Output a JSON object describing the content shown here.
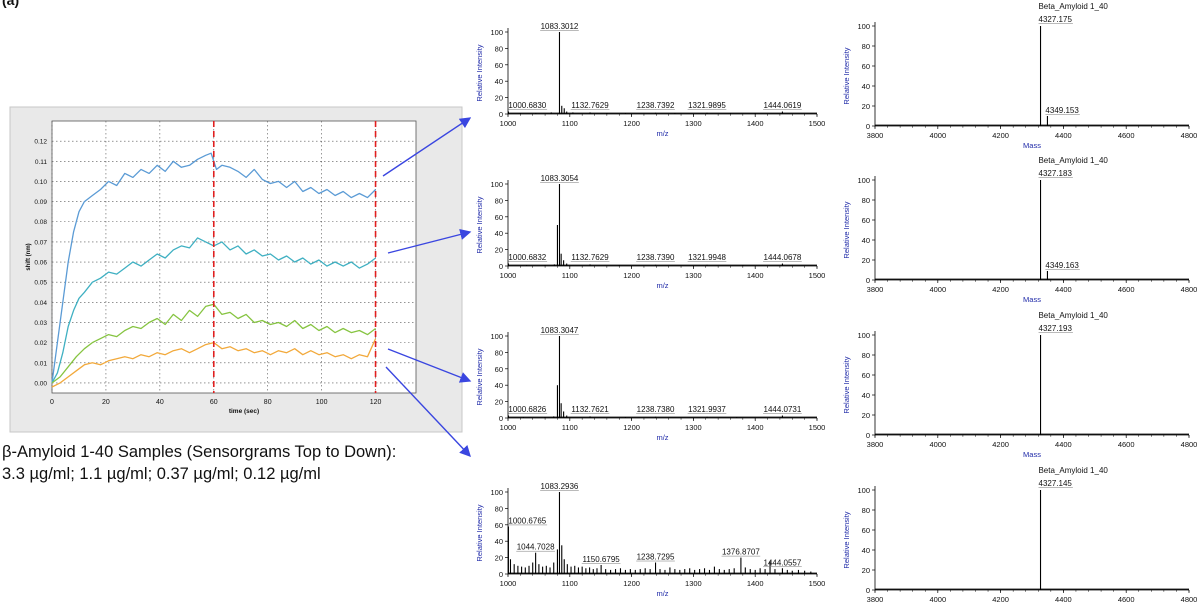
{
  "figure": {
    "panel_label": "(a)",
    "caption_line1": "β-Amyloid 1-40 Samples (Sensorgrams Top to Down):",
    "caption_line2": "3.3 µg/ml; 1.1 µg/ml; 0.37 µg/ml; 0.12 µg/ml"
  },
  "colors": {
    "trace_1": "#5b9bd5",
    "trace_2": "#3fb0c2",
    "trace_3": "#86c441",
    "trace_4": "#f2a93b",
    "dashed_marker": "#e01f1f",
    "arrow": "#3a46e0",
    "ms_axis_label": "#1f2aa8"
  },
  "chart_data": [
    {
      "type": "line",
      "id": "sensorgram",
      "xlabel": "time (sec)",
      "ylabel": "shift (nm)",
      "xlim": [
        0,
        135
      ],
      "ylim": [
        -0.005,
        0.13
      ],
      "xticks": [
        0,
        20,
        40,
        60,
        80,
        100,
        120
      ],
      "yticks": [
        0.0,
        0.01,
        0.02,
        0.03,
        0.04,
        0.05,
        0.06,
        0.07,
        0.08,
        0.09,
        0.1,
        0.11,
        0.12
      ],
      "ytick_labels": [
        "0.00",
        "0.01",
        "0.02",
        "0.03",
        "0.04",
        "0.05",
        "0.06",
        "0.07",
        "0.08",
        "0.09",
        "0.10",
        "0.11",
        "0.12"
      ],
      "grid": true,
      "vlines": [
        60,
        120
      ],
      "series": [
        {
          "color": "#5b9bd5",
          "x": [
            0,
            2,
            4,
            6,
            8,
            10,
            12,
            15,
            18,
            21,
            24,
            27,
            30,
            33,
            36,
            39,
            42,
            45,
            48,
            51,
            54,
            57,
            59,
            61,
            63,
            66,
            69,
            72,
            75,
            78,
            81,
            84,
            87,
            90,
            93,
            96,
            99,
            102,
            105,
            108,
            111,
            114,
            117,
            120
          ],
          "y": [
            0.0,
            0.02,
            0.04,
            0.06,
            0.075,
            0.085,
            0.09,
            0.093,
            0.096,
            0.1,
            0.098,
            0.104,
            0.102,
            0.106,
            0.104,
            0.108,
            0.105,
            0.11,
            0.107,
            0.108,
            0.111,
            0.113,
            0.114,
            0.106,
            0.108,
            0.107,
            0.105,
            0.102,
            0.106,
            0.101,
            0.099,
            0.1,
            0.097,
            0.1,
            0.095,
            0.097,
            0.094,
            0.096,
            0.093,
            0.095,
            0.092,
            0.094,
            0.092,
            0.096
          ]
        },
        {
          "color": "#3fb0c2",
          "x": [
            0,
            2,
            4,
            6,
            8,
            10,
            12,
            15,
            18,
            21,
            24,
            27,
            30,
            33,
            36,
            39,
            42,
            45,
            48,
            51,
            54,
            57,
            60,
            63,
            66,
            69,
            72,
            75,
            78,
            81,
            84,
            87,
            90,
            93,
            96,
            99,
            102,
            105,
            108,
            111,
            114,
            117,
            120
          ],
          "y": [
            0.0,
            0.005,
            0.015,
            0.028,
            0.036,
            0.042,
            0.045,
            0.05,
            0.052,
            0.055,
            0.054,
            0.057,
            0.06,
            0.058,
            0.061,
            0.064,
            0.062,
            0.066,
            0.068,
            0.067,
            0.072,
            0.07,
            0.068,
            0.07,
            0.066,
            0.068,
            0.064,
            0.066,
            0.063,
            0.064,
            0.061,
            0.063,
            0.06,
            0.062,
            0.059,
            0.061,
            0.058,
            0.06,
            0.058,
            0.06,
            0.057,
            0.059,
            0.062
          ]
        },
        {
          "color": "#86c441",
          "x": [
            0,
            3,
            6,
            9,
            12,
            15,
            18,
            21,
            24,
            27,
            30,
            33,
            36,
            39,
            42,
            45,
            48,
            51,
            54,
            57,
            60,
            63,
            66,
            69,
            72,
            75,
            78,
            81,
            84,
            87,
            90,
            93,
            96,
            99,
            102,
            105,
            108,
            111,
            114,
            117,
            120
          ],
          "y": [
            0.0,
            0.003,
            0.008,
            0.013,
            0.017,
            0.02,
            0.022,
            0.024,
            0.023,
            0.026,
            0.028,
            0.027,
            0.03,
            0.032,
            0.029,
            0.034,
            0.031,
            0.036,
            0.033,
            0.038,
            0.039,
            0.034,
            0.035,
            0.032,
            0.034,
            0.03,
            0.031,
            0.029,
            0.03,
            0.028,
            0.031,
            0.027,
            0.029,
            0.026,
            0.028,
            0.025,
            0.027,
            0.025,
            0.026,
            0.024,
            0.027
          ]
        },
        {
          "color": "#f2a93b",
          "x": [
            0,
            3,
            6,
            9,
            12,
            15,
            18,
            21,
            24,
            27,
            30,
            33,
            36,
            39,
            42,
            45,
            48,
            51,
            54,
            57,
            60,
            63,
            66,
            69,
            72,
            75,
            78,
            81,
            84,
            87,
            90,
            93,
            96,
            99,
            102,
            105,
            108,
            111,
            114,
            117,
            120
          ],
          "y": [
            -0.002,
            0.0,
            0.003,
            0.006,
            0.009,
            0.01,
            0.009,
            0.011,
            0.012,
            0.013,
            0.012,
            0.014,
            0.013,
            0.015,
            0.014,
            0.016,
            0.017,
            0.015,
            0.017,
            0.019,
            0.02,
            0.017,
            0.018,
            0.016,
            0.017,
            0.015,
            0.016,
            0.014,
            0.016,
            0.015,
            0.017,
            0.014,
            0.016,
            0.014,
            0.015,
            0.013,
            0.014,
            0.012,
            0.014,
            0.013,
            0.022
          ]
        }
      ]
    },
    {
      "type": "bar",
      "id": "ms1",
      "xlabel": "m/z",
      "ylabel": "Relative Intensity",
      "xlim": [
        1000,
        1500
      ],
      "ylim": [
        0,
        100
      ],
      "xticks": [
        1000,
        1100,
        1200,
        1300,
        1400,
        1500
      ],
      "yticks": [
        0,
        20,
        40,
        60,
        80,
        100
      ],
      "peaks": [
        [
          1000.683,
          3
        ],
        [
          1020,
          1
        ],
        [
          1045,
          1
        ],
        [
          1070,
          2
        ],
        [
          1083.3012,
          100
        ],
        [
          1087,
          10
        ],
        [
          1091,
          7
        ],
        [
          1095,
          3
        ],
        [
          1105,
          2
        ],
        [
          1132.7629,
          2
        ],
        [
          1160,
          1
        ],
        [
          1190,
          1
        ],
        [
          1238.7392,
          1.5
        ],
        [
          1270,
          1
        ],
        [
          1321.9895,
          1.5
        ],
        [
          1360,
          1
        ],
        [
          1400,
          1
        ],
        [
          1444.0619,
          3
        ]
      ],
      "labels": [
        [
          "1083.3012",
          1083.3012
        ],
        [
          "1000.6830",
          1000.683
        ],
        [
          "1132.7629",
          1132.7629
        ],
        [
          "1238.7392",
          1238.7392
        ],
        [
          "1321.9895",
          1321.9895
        ],
        [
          "1444.0619",
          1444.0619
        ]
      ]
    },
    {
      "type": "bar",
      "id": "ms2",
      "xlabel": "m/z",
      "ylabel": "Relative Intensity",
      "xlim": [
        1000,
        1500
      ],
      "ylim": [
        0,
        100
      ],
      "xticks": [
        1000,
        1100,
        1200,
        1300,
        1400,
        1500
      ],
      "yticks": [
        0,
        20,
        40,
        60,
        80,
        100
      ],
      "peaks": [
        [
          1000.6832,
          3
        ],
        [
          1030,
          1
        ],
        [
          1060,
          1
        ],
        [
          1075,
          2
        ],
        [
          1080,
          50
        ],
        [
          1083.3054,
          100
        ],
        [
          1086,
          15
        ],
        [
          1090,
          7
        ],
        [
          1095,
          3
        ],
        [
          1132.7629,
          2
        ],
        [
          1180,
          1
        ],
        [
          1238.739,
          1.5
        ],
        [
          1321.9948,
          1.5
        ],
        [
          1380,
          1
        ],
        [
          1444.0678,
          3
        ]
      ],
      "labels": [
        [
          "1083.3054",
          1083.3054
        ],
        [
          "1000.6832",
          1000.6832
        ],
        [
          "1132.7629",
          1132.7629
        ],
        [
          "1238.7390",
          1238.739
        ],
        [
          "1321.9948",
          1321.9948
        ],
        [
          "1444.0678",
          1444.0678
        ]
      ]
    },
    {
      "type": "bar",
      "id": "ms3",
      "xlabel": "m/z",
      "ylabel": "Relative Intensity",
      "xlim": [
        1000,
        1500
      ],
      "ylim": [
        0,
        100
      ],
      "xticks": [
        1000,
        1100,
        1200,
        1300,
        1400,
        1500
      ],
      "yticks": [
        0,
        20,
        40,
        60,
        80,
        100
      ],
      "peaks": [
        [
          1000.6826,
          3
        ],
        [
          1025,
          1
        ],
        [
          1060,
          1
        ],
        [
          1074,
          2
        ],
        [
          1080,
          40
        ],
        [
          1083.3047,
          100
        ],
        [
          1086,
          18
        ],
        [
          1090,
          8
        ],
        [
          1095,
          3
        ],
        [
          1132.7621,
          2
        ],
        [
          1190,
          1
        ],
        [
          1238.738,
          1.5
        ],
        [
          1321.9937,
          1.5
        ],
        [
          1370,
          1
        ],
        [
          1444.0731,
          3
        ]
      ],
      "labels": [
        [
          "1083.3047",
          1083.3047
        ],
        [
          "1000.6826",
          1000.6826
        ],
        [
          "1132.7621",
          1132.7621
        ],
        [
          "1238.7380",
          1238.738
        ],
        [
          "1321.9937",
          1321.9937
        ],
        [
          "1444.0731",
          1444.0731
        ]
      ]
    },
    {
      "type": "bar",
      "id": "ms4",
      "xlabel": "m/z",
      "ylabel": "Relative Intensity",
      "xlim": [
        1000,
        1500
      ],
      "ylim": [
        0,
        100
      ],
      "xticks": [
        1000,
        1100,
        1200,
        1300,
        1400,
        1500
      ],
      "yticks": [
        0,
        20,
        40,
        60,
        80,
        100
      ],
      "peaks": [
        [
          1000.6765,
          58
        ],
        [
          1004,
          18
        ],
        [
          1010,
          12
        ],
        [
          1016,
          10
        ],
        [
          1022,
          9
        ],
        [
          1028,
          8
        ],
        [
          1034,
          10
        ],
        [
          1040,
          14
        ],
        [
          1044.7028,
          26
        ],
        [
          1050,
          12
        ],
        [
          1056,
          9
        ],
        [
          1062,
          10
        ],
        [
          1068,
          8
        ],
        [
          1074,
          14
        ],
        [
          1080,
          30
        ],
        [
          1083.2936,
          100
        ],
        [
          1087,
          35
        ],
        [
          1091,
          18
        ],
        [
          1096,
          12
        ],
        [
          1102,
          9
        ],
        [
          1108,
          10
        ],
        [
          1114,
          8
        ],
        [
          1120,
          9
        ],
        [
          1126,
          7
        ],
        [
          1132,
          8
        ],
        [
          1138,
          6
        ],
        [
          1144,
          7
        ],
        [
          1150.6795,
          11
        ],
        [
          1158,
          6
        ],
        [
          1166,
          5
        ],
        [
          1174,
          6
        ],
        [
          1182,
          7
        ],
        [
          1190,
          5
        ],
        [
          1198,
          6
        ],
        [
          1206,
          5
        ],
        [
          1214,
          6
        ],
        [
          1222,
          7
        ],
        [
          1230,
          6
        ],
        [
          1238.7295,
          14
        ],
        [
          1246,
          6
        ],
        [
          1254,
          5
        ],
        [
          1262,
          8
        ],
        [
          1270,
          6
        ],
        [
          1278,
          5
        ],
        [
          1286,
          6
        ],
        [
          1294,
          7
        ],
        [
          1302,
          5
        ],
        [
          1310,
          6
        ],
        [
          1318,
          7
        ],
        [
          1326,
          5
        ],
        [
          1334,
          9
        ],
        [
          1342,
          6
        ],
        [
          1350,
          5
        ],
        [
          1358,
          6
        ],
        [
          1366,
          7
        ],
        [
          1376.8707,
          20
        ],
        [
          1384,
          8
        ],
        [
          1392,
          6
        ],
        [
          1400,
          5
        ],
        [
          1408,
          7
        ],
        [
          1416,
          6
        ],
        [
          1424,
          16
        ],
        [
          1432,
          6
        ],
        [
          1444.0557,
          7
        ],
        [
          1452,
          5
        ],
        [
          1460,
          4
        ],
        [
          1470,
          5
        ],
        [
          1480,
          4
        ],
        [
          1490,
          3
        ]
      ],
      "labels": [
        [
          "1083.2936",
          1083.2936
        ],
        [
          "1000.6765",
          1000.6765
        ],
        [
          "1044.7028",
          1044.7028
        ],
        [
          "1150.6795",
          1150.6795
        ],
        [
          "1238.7295",
          1238.7295
        ],
        [
          "1376.8707",
          1376.8707
        ],
        [
          "1444.0557",
          1444.0557
        ]
      ]
    },
    {
      "type": "bar",
      "id": "dc1",
      "title": "Beta_Amyloid 1_40",
      "xlabel": "Mass",
      "ylabel": "Relative Intensity",
      "xlim": [
        3800,
        4800
      ],
      "ylim": [
        0,
        100
      ],
      "xticks": [
        3800,
        4000,
        4200,
        4400,
        4600,
        4800
      ],
      "yticks": [
        0,
        20,
        40,
        60,
        80,
        100
      ],
      "peaks": [
        [
          4327.175,
          100
        ],
        [
          4349.153,
          10
        ]
      ],
      "labels": [
        [
          "4327.175",
          4327.175
        ],
        [
          "4349.153",
          4349.153
        ]
      ]
    },
    {
      "type": "bar",
      "id": "dc2",
      "title": "Beta_Amyloid 1_40",
      "xlabel": "Mass",
      "ylabel": "Relative Intensity",
      "xlim": [
        3800,
        4800
      ],
      "ylim": [
        0,
        100
      ],
      "xticks": [
        3800,
        4000,
        4200,
        4400,
        4600,
        4800
      ],
      "yticks": [
        0,
        20,
        40,
        60,
        80,
        100
      ],
      "peaks": [
        [
          4327.183,
          100
        ],
        [
          4349.163,
          9
        ]
      ],
      "labels": [
        [
          "4327.183",
          4327.183
        ],
        [
          "4349.163",
          4349.163
        ]
      ]
    },
    {
      "type": "bar",
      "id": "dc3",
      "title": "Beta_Amyloid 1_40",
      "xlabel": "Mass",
      "ylabel": "Relative Intensity",
      "xlim": [
        3800,
        4800
      ],
      "ylim": [
        0,
        100
      ],
      "xticks": [
        3800,
        4000,
        4200,
        4400,
        4600,
        4800
      ],
      "yticks": [
        0,
        20,
        40,
        60,
        80,
        100
      ],
      "peaks": [
        [
          4327.193,
          100
        ]
      ],
      "labels": [
        [
          "4327.193",
          4327.193
        ]
      ]
    },
    {
      "type": "bar",
      "id": "dc4",
      "title": "Beta_Amyloid 1_40",
      "xlabel": "Mass",
      "ylabel": "Relative Intensity",
      "xlim": [
        3800,
        4800
      ],
      "ylim": [
        0,
        100
      ],
      "xticks": [
        3800,
        4000,
        4200,
        4400,
        4600,
        4800
      ],
      "yticks": [
        0,
        20,
        40,
        60,
        80,
        100
      ],
      "peaks": [
        [
          4327.145,
          100
        ]
      ],
      "labels": [
        [
          "4327.145",
          4327.145
        ]
      ]
    }
  ]
}
